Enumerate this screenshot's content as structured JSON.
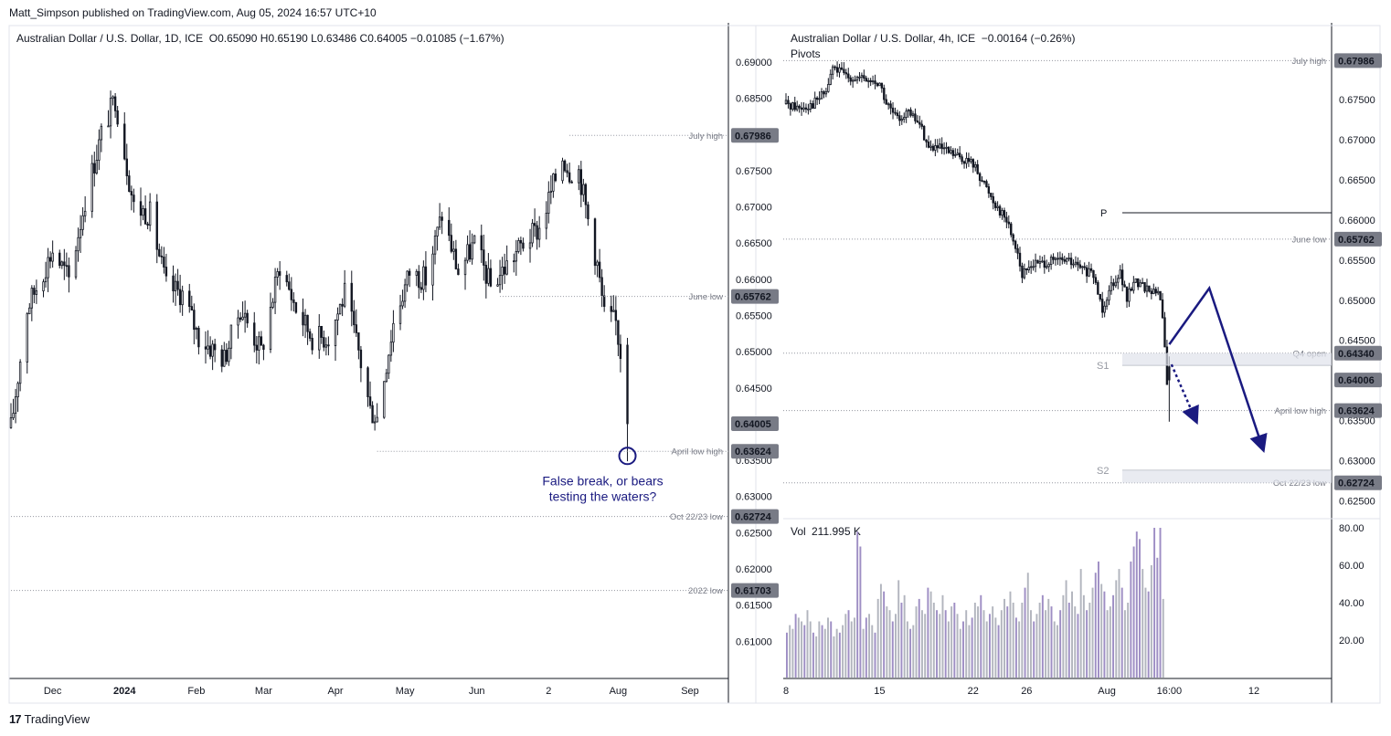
{
  "header": {
    "published": "Matt_Simpson published on TradingView.com, Aug 05, 2024 16:57 UTC+10"
  },
  "footer": {
    "logo_glyph": "17",
    "brand": "TradingView"
  },
  "chart_data": [
    {
      "type": "candlestick",
      "title": "Australian Dollar / U.S. Dollar, 1D, ICE",
      "ohlc_label": "O0.65090 H0.65190 L0.63486 C0.64005 −0.01085 (−1.67%)",
      "ylim": [
        0.605,
        0.692
      ],
      "y_ticks": [
        "0.69000",
        "0.68500",
        "0.68000",
        "0.67500",
        "0.67000",
        "0.66500",
        "0.66000",
        "0.65500",
        "0.65000",
        "0.64500",
        "0.64000",
        "0.63500",
        "0.63000",
        "0.62500",
        "0.62000",
        "0.61500",
        "0.61000"
      ],
      "x_ticks": [
        {
          "label": "Dec",
          "date": "2023-12-01"
        },
        {
          "label": "2024",
          "date": "2024-01-01"
        },
        {
          "label": "Feb",
          "date": "2024-02-01"
        },
        {
          "label": "Mar",
          "date": "2024-03-01"
        },
        {
          "label": "Apr",
          "date": "2024-04-01"
        },
        {
          "label": "May",
          "date": "2024-05-01"
        },
        {
          "label": "Jun",
          "date": "2024-06-01"
        },
        {
          "label": "2",
          "date": "2024-07-02"
        },
        {
          "label": "Aug",
          "date": "2024-08-01"
        },
        {
          "label": "Sep",
          "date": "2024-09-01"
        }
      ],
      "close_path": [
        [
          "2023-11-13",
          0.6395
        ],
        [
          "2023-11-20",
          0.656
        ],
        [
          "2023-12-01",
          0.664
        ],
        [
          "2023-12-08",
          0.66
        ],
        [
          "2023-12-15",
          0.671
        ],
        [
          "2023-12-22",
          0.68
        ],
        [
          "2023-12-28",
          0.685
        ],
        [
          "2024-01-05",
          0.67
        ],
        [
          "2024-01-12",
          0.669
        ],
        [
          "2024-01-19",
          0.659
        ],
        [
          "2024-01-26",
          0.658
        ],
        [
          "2024-02-02",
          0.652
        ],
        [
          "2024-02-13",
          0.649
        ],
        [
          "2024-02-20",
          0.656
        ],
        [
          "2024-02-29",
          0.65
        ],
        [
          "2024-03-08",
          0.662
        ],
        [
          "2024-03-15",
          0.656
        ],
        [
          "2024-03-22",
          0.652
        ],
        [
          "2024-03-29",
          0.652
        ],
        [
          "2024-04-05",
          0.658
        ],
        [
          "2024-04-11",
          0.65
        ],
        [
          "2024-04-16",
          0.642
        ],
        [
          "2024-04-19",
          0.641
        ],
        [
          "2024-04-26",
          0.654
        ],
        [
          "2024-05-03",
          0.661
        ],
        [
          "2024-05-10",
          0.66
        ],
        [
          "2024-05-17",
          0.669
        ],
        [
          "2024-05-24",
          0.661
        ],
        [
          "2024-05-31",
          0.665
        ],
        [
          "2024-06-07",
          0.659
        ],
        [
          "2024-06-14",
          0.662
        ],
        [
          "2024-06-21",
          0.665
        ],
        [
          "2024-06-28",
          0.667
        ],
        [
          "2024-07-05",
          0.674
        ],
        [
          "2024-07-08",
          0.677
        ],
        [
          "2024-07-11",
          0.675
        ],
        [
          "2024-07-15",
          0.675
        ],
        [
          "2024-07-18",
          0.67
        ],
        [
          "2024-07-23",
          0.662
        ],
        [
          "2024-07-26",
          0.655
        ],
        [
          "2024-07-31",
          0.654
        ],
        [
          "2024-08-02",
          0.65
        ],
        [
          "2024-08-05",
          0.64
        ]
      ],
      "last_candle": {
        "date": "2024-08-05",
        "open": 0.6509,
        "high": 0.6519,
        "low": 0.63486,
        "close": 0.64005
      },
      "levels": [
        {
          "label": "July high",
          "value": 0.67986,
          "badge": "0.67986",
          "from": "2024-07-11"
        },
        {
          "label": "June low",
          "value": 0.65762,
          "badge": "0.65762",
          "from": "2024-06-11"
        },
        {
          "label": "April low high",
          "value": 0.63624,
          "badge": "0.63624",
          "from": "2024-04-19"
        },
        {
          "label": "Oct 22/23 low",
          "value": 0.62724,
          "badge": "0.62724",
          "from": "2023-11-13"
        },
        {
          "label": "2022 low",
          "value": 0.61703,
          "badge": "0.61703",
          "from": "2023-11-13"
        }
      ],
      "last_price": {
        "value": 0.64005,
        "badge": "0.64005"
      },
      "annotation": {
        "line1": "False break, or bears",
        "line2": "testing the waters?",
        "date": "2024-08-05",
        "value": 0.6356
      }
    },
    {
      "type": "candlestick",
      "title": "Australian Dollar / U.S. Dollar, 4h, ICE",
      "change_label": "−0.00164 (−0.26%)",
      "indicator": "Pivots",
      "ylim": [
        0.623,
        0.6815
      ],
      "y_ticks": [
        "0.67500",
        "0.67000",
        "0.66500",
        "0.66000",
        "0.65500",
        "0.65000",
        "0.64500",
        "0.64000",
        "0.63500",
        "0.63000",
        "0.62500"
      ],
      "x_ticks": [
        {
          "label": "8",
          "date": "2024-07-08T00:00"
        },
        {
          "label": "15",
          "date": "2024-07-15T00:00"
        },
        {
          "label": "22",
          "date": "2024-07-22T00:00"
        },
        {
          "label": "26",
          "date": "2024-07-26T00:00"
        },
        {
          "label": "Aug",
          "date": "2024-08-01T00:00"
        },
        {
          "label": "16:00",
          "date": "2024-08-05T16:00"
        },
        {
          "label": "12",
          "date": "2024-08-12T00:00"
        }
      ],
      "close_path": [
        [
          "2024-07-08T00:00",
          0.6745
        ],
        [
          "2024-07-09T00:00",
          0.674
        ],
        [
          "2024-07-10T00:00",
          0.6745
        ],
        [
          "2024-07-11T00:00",
          0.676
        ],
        [
          "2024-07-11T12:00",
          0.679
        ],
        [
          "2024-07-12T12:00",
          0.678
        ],
        [
          "2024-07-15T00:00",
          0.677
        ],
        [
          "2024-07-15T12:00",
          0.6745
        ],
        [
          "2024-07-16T08:00",
          0.6725
        ],
        [
          "2024-07-17T00:00",
          0.6735
        ],
        [
          "2024-07-18T00:00",
          0.672
        ],
        [
          "2024-07-18T16:00",
          0.669
        ],
        [
          "2024-07-19T08:00",
          0.669
        ],
        [
          "2024-07-22T00:00",
          0.667
        ],
        [
          "2024-07-23T00:00",
          0.664
        ],
        [
          "2024-07-23T16:00",
          0.662
        ],
        [
          "2024-07-24T12:00",
          0.66
        ],
        [
          "2024-07-25T08:00",
          0.656
        ],
        [
          "2024-07-25T16:00",
          0.653
        ],
        [
          "2024-07-26T08:00",
          0.6545
        ],
        [
          "2024-07-29T00:00",
          0.655
        ],
        [
          "2024-07-30T00:00",
          0.654
        ],
        [
          "2024-07-31T00:00",
          0.653
        ],
        [
          "2024-07-31T16:00",
          0.649
        ],
        [
          "2024-08-01T08:00",
          0.652
        ],
        [
          "2024-08-02T00:00",
          0.6535
        ],
        [
          "2024-08-02T12:00",
          0.65
        ],
        [
          "2024-08-03T00:00",
          0.6525
        ],
        [
          "2024-08-05T00:00",
          0.6505
        ],
        [
          "2024-08-05T08:00",
          0.6445
        ],
        [
          "2024-08-05T12:00",
          0.639
        ],
        [
          "2024-08-05T16:00",
          0.6401
        ]
      ],
      "last_candle": {
        "date": "2024-08-05T16:00",
        "open": 0.6417,
        "high": 0.643,
        "low": 0.63486,
        "close": 0.64006
      },
      "levels": [
        {
          "label": "July high",
          "value": 0.67986,
          "badge": "0.67986"
        },
        {
          "label": "June low",
          "value": 0.65762,
          "badge": "0.65762"
        },
        {
          "label": "Q4 open",
          "value": 0.6434,
          "badge": "0.64340"
        },
        {
          "label": "April low high",
          "value": 0.63624,
          "badge": "0.63624"
        },
        {
          "label": "Oct 22/23 low",
          "value": 0.62724,
          "badge": "0.62724"
        }
      ],
      "pivots": [
        {
          "label": "P",
          "value": 0.6609
        },
        {
          "label": "S1",
          "value": 0.6419
        },
        {
          "label": "S2",
          "value": 0.6288
        }
      ],
      "last_price": {
        "value": 0.64006,
        "badge": "0.64006"
      },
      "arrows": [
        {
          "style": "solid",
          "points": [
            [
              "2024-08-05T16:00",
              0.6445
            ],
            [
              "2024-08-08T16:00",
              0.6515
            ],
            [
              "2024-08-12T16:00",
              0.6315
            ]
          ]
        },
        {
          "style": "dotted",
          "points": [
            [
              "2024-08-05T20:00",
              0.642
            ],
            [
              "2024-08-07T16:00",
              0.635
            ]
          ]
        }
      ],
      "volume": {
        "label": "Vol",
        "value_label": "211.995 K",
        "ylim": [
          0,
          80
        ],
        "y_ticks": [
          "80.00",
          "60.00",
          "40.00",
          "20.00"
        ],
        "values": [
          24,
          28,
          26,
          34,
          32,
          30,
          28,
          36,
          30,
          24,
          22,
          30,
          28,
          26,
          32,
          30,
          22,
          26,
          24,
          28,
          34,
          36,
          30,
          32,
          78,
          70,
          26,
          32,
          34,
          28,
          24,
          42,
          50,
          46,
          38,
          36,
          30,
          34,
          52,
          40,
          44,
          30,
          26,
          28,
          38,
          42,
          36,
          34,
          48,
          46,
          40,
          36,
          34,
          44,
          36,
          30,
          38,
          40,
          34,
          26,
          30,
          36,
          28,
          32,
          40,
          38,
          44,
          36,
          30,
          34,
          38,
          32,
          28,
          36,
          42,
          38,
          46,
          40,
          32,
          30,
          40,
          48,
          56,
          36,
          30,
          34,
          40,
          44,
          36,
          42,
          38,
          30,
          28,
          36,
          44,
          52,
          40,
          46,
          38,
          34,
          58,
          44,
          36,
          40,
          48,
          56,
          62,
          50,
          46,
          36,
          38,
          44,
          52,
          58,
          48,
          36,
          40,
          62,
          70,
          78,
          74,
          58,
          48,
          46,
          60,
          80,
          64,
          80,
          42
        ]
      },
      "annotation_color": "#1a1a80"
    }
  ]
}
